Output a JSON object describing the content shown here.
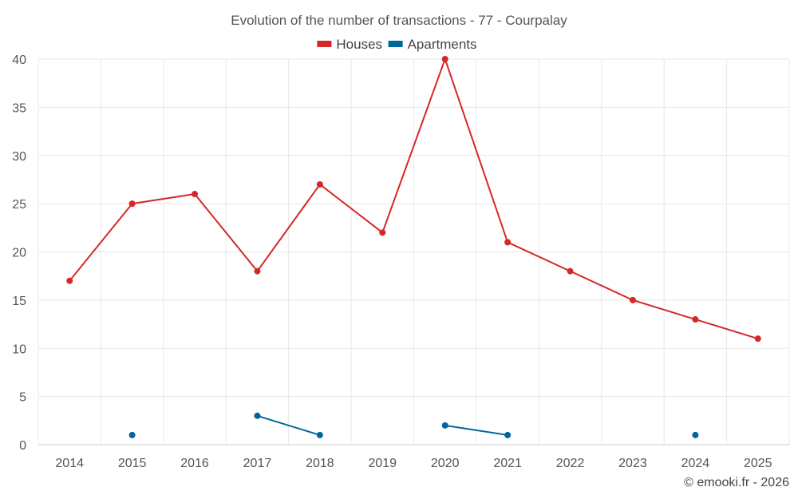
{
  "chart_data": {
    "type": "line",
    "title": "Evolution of the number of transactions - 77 - Courpalay",
    "xlabel": "",
    "ylabel": "",
    "categories": [
      "2014",
      "2015",
      "2016",
      "2017",
      "2018",
      "2019",
      "2020",
      "2021",
      "2022",
      "2023",
      "2024",
      "2025"
    ],
    "ylim": [
      0,
      40
    ],
    "yticks": [
      0,
      5,
      10,
      15,
      20,
      25,
      30,
      35,
      40
    ],
    "grid": true,
    "legend_position": "top-center",
    "series": [
      {
        "name": "Houses",
        "color": "#d62728",
        "values": [
          17,
          25,
          26,
          18,
          27,
          22,
          40,
          21,
          18,
          15,
          13,
          11
        ]
      },
      {
        "name": "Apartments",
        "color": "#00679e",
        "values": [
          null,
          1,
          null,
          3,
          1,
          null,
          2,
          1,
          null,
          null,
          1,
          null
        ]
      }
    ]
  },
  "credit": "© emooki.fr - 2026"
}
